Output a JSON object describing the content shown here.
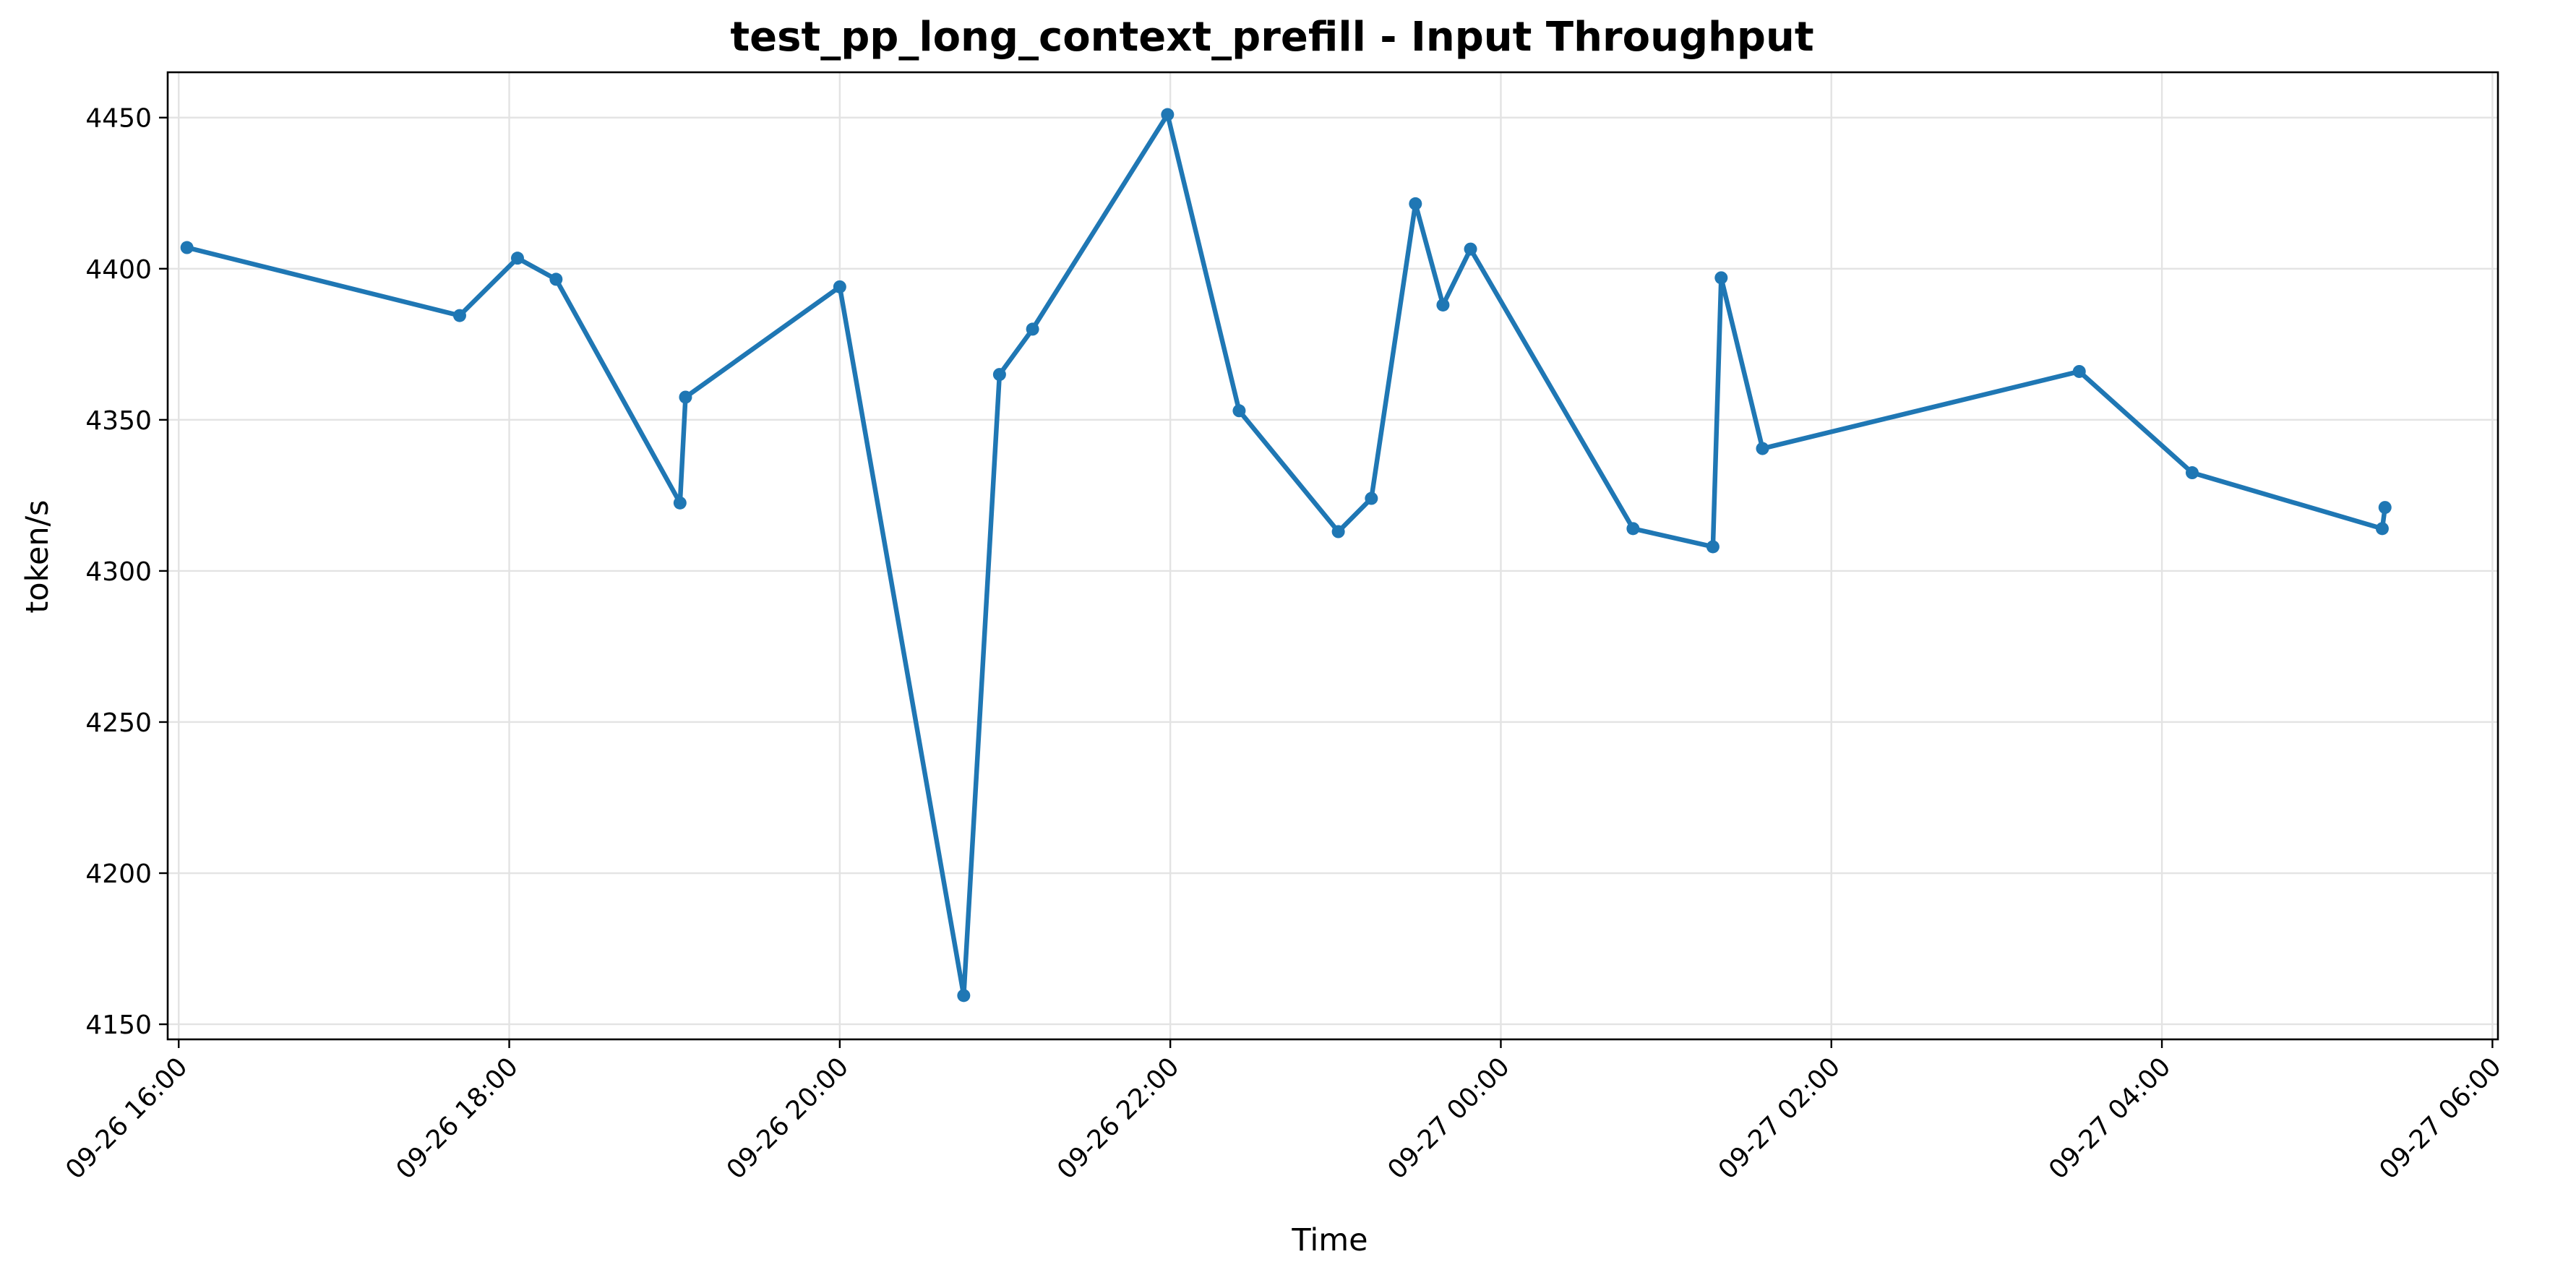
{
  "chart_data": {
    "type": "line",
    "title": "test_pp_long_context_prefill - Input Throughput",
    "xlabel": "Time",
    "ylabel": "token/s",
    "x_tick_labels": [
      "09-26 16:00",
      "09-26 18:00",
      "09-26 20:00",
      "09-26 22:00",
      "09-27 00:00",
      "09-27 02:00",
      "09-27 04:00",
      "09-27 06:00"
    ],
    "y_ticks": [
      4150,
      4200,
      4250,
      4300,
      4350,
      4400,
      4450
    ],
    "xlim": [
      "2024-09-26 15:56",
      "2024-09-27 06:02"
    ],
    "ylim": [
      4145,
      4465
    ],
    "grid": true,
    "color": "#1f77b4",
    "series": [
      {
        "points": [
          {
            "x": "2024-09-26 16:03",
            "y": 4407
          },
          {
            "x": "2024-09-26 17:42",
            "y": 4384.5
          },
          {
            "x": "2024-09-26 18:03",
            "y": 4403.5
          },
          {
            "x": "2024-09-26 18:17",
            "y": 4396.5
          },
          {
            "x": "2024-09-26 19:02",
            "y": 4322.5
          },
          {
            "x": "2024-09-26 19:04",
            "y": 4357.5
          },
          {
            "x": "2024-09-26 20:00",
            "y": 4394
          },
          {
            "x": "2024-09-26 20:45",
            "y": 4159.5
          },
          {
            "x": "2024-09-26 20:58",
            "y": 4365
          },
          {
            "x": "2024-09-26 21:10",
            "y": 4380
          },
          {
            "x": "2024-09-26 21:59",
            "y": 4451
          },
          {
            "x": "2024-09-26 22:25",
            "y": 4353
          },
          {
            "x": "2024-09-26 23:01",
            "y": 4313
          },
          {
            "x": "2024-09-26 23:13",
            "y": 4324
          },
          {
            "x": "2024-09-26 23:29",
            "y": 4421.5
          },
          {
            "x": "2024-09-26 23:39",
            "y": 4388
          },
          {
            "x": "2024-09-26 23:49",
            "y": 4406.5
          },
          {
            "x": "2024-09-27 00:48",
            "y": 4314
          },
          {
            "x": "2024-09-27 01:17",
            "y": 4308
          },
          {
            "x": "2024-09-27 01:20",
            "y": 4397
          },
          {
            "x": "2024-09-27 01:35",
            "y": 4340.5
          },
          {
            "x": "2024-09-27 03:30",
            "y": 4366
          },
          {
            "x": "2024-09-27 04:11",
            "y": 4332.5
          },
          {
            "x": "2024-09-27 05:20",
            "y": 4314
          },
          {
            "x": "2024-09-27 05:21",
            "y": 4321
          }
        ]
      }
    ]
  }
}
